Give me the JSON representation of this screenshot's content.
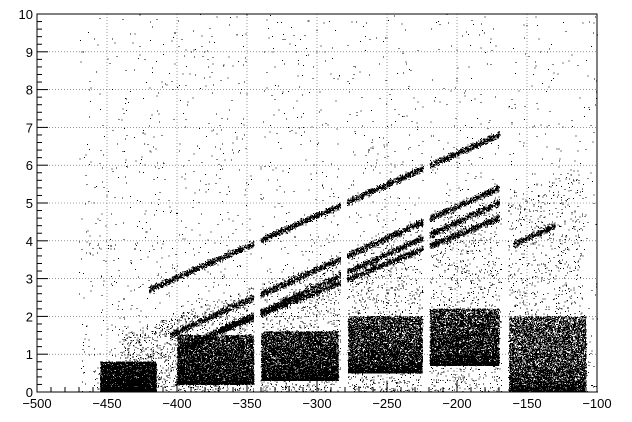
{
  "chart_data": {
    "type": "scatter",
    "title": "",
    "xlabel": "",
    "ylabel": "",
    "xlim": [
      -500,
      -100
    ],
    "ylim": [
      0,
      10
    ],
    "grid": true,
    "legend": "none",
    "point_color": "#000000",
    "x_ticks": [
      -500,
      -450,
      -400,
      -350,
      -300,
      -250,
      -200,
      -150,
      -100
    ],
    "x_tick_labels": [
      "−500",
      "−450",
      "−400",
      "−350",
      "−300",
      "−250",
      "−200",
      "−150",
      "−100"
    ],
    "y_ticks": [
      0,
      1,
      2,
      3,
      4,
      5,
      6,
      7,
      8,
      9,
      10
    ],
    "y_tick_labels": [
      "0",
      "1",
      "2",
      "3",
      "4",
      "5",
      "6",
      "7",
      "8",
      "9",
      "10"
    ],
    "gaps_x": [
      -343,
      -281,
      -222,
      -166
    ],
    "bands": [
      {
        "x": [
          -420,
          -170
        ],
        "y_at_start": 2.7,
        "y_at_end": 6.8
      },
      {
        "x": [
          -405,
          -170
        ],
        "y_at_start": 1.5,
        "y_at_end": 5.4
      },
      {
        "x": [
          -400,
          -170
        ],
        "y_at_start": 1.1,
        "y_at_end": 5.0
      },
      {
        "x": [
          -370,
          -170
        ],
        "y_at_start": 1.6,
        "y_at_end": 4.6
      },
      {
        "x": [
          -160,
          -130
        ],
        "y_at_start": 3.9,
        "y_at_end": 4.4
      }
    ],
    "dense_regions": [
      {
        "x": [
          -455,
          -415
        ],
        "y": [
          0,
          0.8
        ]
      },
      {
        "x": [
          -400,
          -345
        ],
        "y": [
          0.2,
          1.5
        ]
      },
      {
        "x": [
          -340,
          -285
        ],
        "y": [
          0.3,
          1.6
        ]
      },
      {
        "x": [
          -278,
          -225
        ],
        "y": [
          0.5,
          2.0
        ]
      },
      {
        "x": [
          -220,
          -170
        ],
        "y": [
          0.7,
          2.2
        ]
      },
      {
        "x": [
          -163,
          -108
        ],
        "y": [
          0.0,
          2.0
        ]
      }
    ]
  }
}
